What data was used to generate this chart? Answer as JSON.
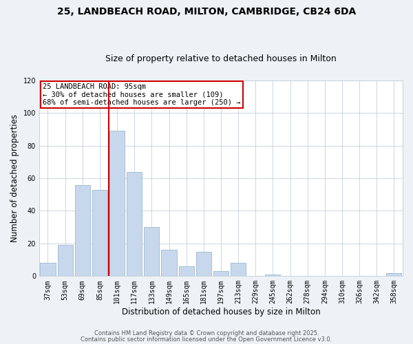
{
  "title1": "25, LANDBEACH ROAD, MILTON, CAMBRIDGE, CB24 6DA",
  "title2": "Size of property relative to detached houses in Milton",
  "xlabel": "Distribution of detached houses by size in Milton",
  "ylabel": "Number of detached properties",
  "categories": [
    "37sqm",
    "53sqm",
    "69sqm",
    "85sqm",
    "101sqm",
    "117sqm",
    "133sqm",
    "149sqm",
    "165sqm",
    "181sqm",
    "197sqm",
    "213sqm",
    "229sqm",
    "245sqm",
    "262sqm",
    "278sqm",
    "294sqm",
    "310sqm",
    "326sqm",
    "342sqm",
    "358sqm"
  ],
  "values": [
    8,
    19,
    56,
    53,
    89,
    64,
    30,
    16,
    6,
    15,
    3,
    8,
    0,
    1,
    0,
    0,
    0,
    0,
    0,
    0,
    2
  ],
  "bar_color": "#c8d8ec",
  "bar_edgecolor": "#9ab8d0",
  "bar_linewidth": 0.6,
  "vline_color": "#cc0000",
  "vline_position": 3.5,
  "annotation_line1": "25 LANDBEACH ROAD: 95sqm",
  "annotation_line2": "← 30% of detached houses are smaller (109)",
  "annotation_line3": "68% of semi-detached houses are larger (250) →",
  "annotation_box_edgecolor": "#cc0000",
  "annotation_box_facecolor": "#ffffff",
  "ylim": [
    0,
    120
  ],
  "yticks": [
    0,
    20,
    40,
    60,
    80,
    100,
    120
  ],
  "footer1": "Contains HM Land Registry data © Crown copyright and database right 2025.",
  "footer2": "Contains public sector information licensed under the Open Government Licence v3.0.",
  "bg_color": "#eef2f7",
  "plot_bg_color": "#ffffff",
  "grid_color": "#c5d0dc",
  "title_fontsize": 10,
  "subtitle_fontsize": 9,
  "axis_label_fontsize": 8.5,
  "tick_fontsize": 7,
  "annotation_fontsize": 7.5,
  "footer_fontsize": 6
}
